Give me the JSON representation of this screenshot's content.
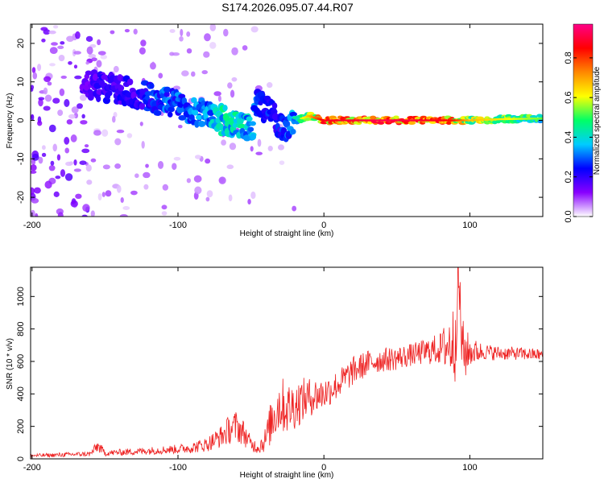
{
  "title": "S174.2026.095.07.44.R07",
  "chart_data": [
    {
      "type": "heatmap",
      "title": "S174.2026.095.07.44.R07",
      "xlabel": "Height of straight line (km)",
      "ylabel": "Frequency (Hz)",
      "xlim": [
        -201,
        150
      ],
      "ylim": [
        -25,
        25
      ],
      "xticks": [
        -200,
        -100,
        0,
        100
      ],
      "yticks": [
        -20,
        -10,
        0,
        10,
        20
      ],
      "colorbar": {
        "label": "Normalized spectral amplitude",
        "range": [
          0,
          0.97
        ],
        "ticks": [
          "0.0",
          "0.2",
          "0.4",
          "0.6",
          "0.8"
        ],
        "tick_values": [
          0,
          0.2,
          0.4,
          0.6,
          0.8
        ],
        "colors": [
          "#ffffff",
          "#8800ff",
          "#0000ff",
          "#00ccff",
          "#00ff66",
          "#ffff00",
          "#ff8800",
          "#ff0000",
          "#ff0088"
        ]
      },
      "ridge": {
        "x": [
          -160,
          -150,
          -140,
          -130,
          -120,
          -110,
          -100,
          -90,
          -80,
          -70,
          -60,
          -50,
          -45,
          -40,
          -35,
          -30,
          -25,
          -20,
          -15,
          -10,
          -5,
          0,
          20,
          40,
          60,
          80,
          90,
          100,
          120,
          150
        ],
        "y": [
          9,
          8.5,
          8,
          7,
          6,
          5,
          4,
          3,
          1.5,
          0,
          -1,
          -3,
          4,
          3,
          1,
          -1,
          -1.5,
          0,
          0.5,
          1.2,
          0.5,
          0,
          0,
          0,
          0,
          0,
          0,
          0,
          0.3,
          0.5
        ],
        "amplitude": [
          0.2,
          0.25,
          0.25,
          0.25,
          0.3,
          0.35,
          0.35,
          0.4,
          0.4,
          0.5,
          0.5,
          0.45,
          0.3,
          0.3,
          0.3,
          0.3,
          0.35,
          0.45,
          0.6,
          0.7,
          0.8,
          0.9,
          0.92,
          0.95,
          0.93,
          0.9,
          0.85,
          0.7,
          0.65,
          0.55
        ]
      }
    },
    {
      "type": "line",
      "xlabel": "Height of straight line (km)",
      "ylabel": "SNR (10 * v/v)",
      "xlim": [
        -201,
        150
      ],
      "ylim": [
        0,
        1180
      ],
      "xticks": [
        -200,
        -100,
        0,
        100
      ],
      "yticks": [
        0,
        200,
        400,
        600,
        800,
        1000
      ],
      "series": [
        {
          "name": "SNR",
          "color": "#ee2222",
          "x": [
            -200,
            -190,
            -180,
            -170,
            -160,
            -155,
            -150,
            -140,
            -130,
            -120,
            -110,
            -100,
            -90,
            -80,
            -70,
            -65,
            -60,
            -55,
            -50,
            -45,
            -40,
            -35,
            -30,
            -25,
            -20,
            -15,
            -10,
            -5,
            0,
            10,
            20,
            30,
            40,
            50,
            60,
            70,
            80,
            85,
            90,
            92,
            95,
            100,
            110,
            120,
            130,
            140,
            150
          ],
          "y": [
            20,
            22,
            25,
            28,
            30,
            80,
            35,
            40,
            45,
            50,
            55,
            60,
            70,
            90,
            140,
            180,
            200,
            160,
            90,
            70,
            120,
            260,
            340,
            310,
            330,
            360,
            380,
            390,
            400,
            460,
            540,
            590,
            610,
            620,
            640,
            660,
            680,
            700,
            720,
            1150,
            650,
            660,
            660,
            650,
            650,
            645,
            640
          ],
          "amplitude": [
            12,
            12,
            14,
            14,
            16,
            40,
            18,
            20,
            22,
            24,
            26,
            28,
            35,
            45,
            70,
            90,
            100,
            80,
            45,
            40,
            80,
            160,
            180,
            160,
            150,
            140,
            120,
            110,
            100,
            90,
            90,
            80,
            75,
            75,
            70,
            80,
            100,
            180,
            260,
            200,
            220,
            90,
            50,
            45,
            40,
            40,
            35
          ]
        }
      ]
    }
  ]
}
